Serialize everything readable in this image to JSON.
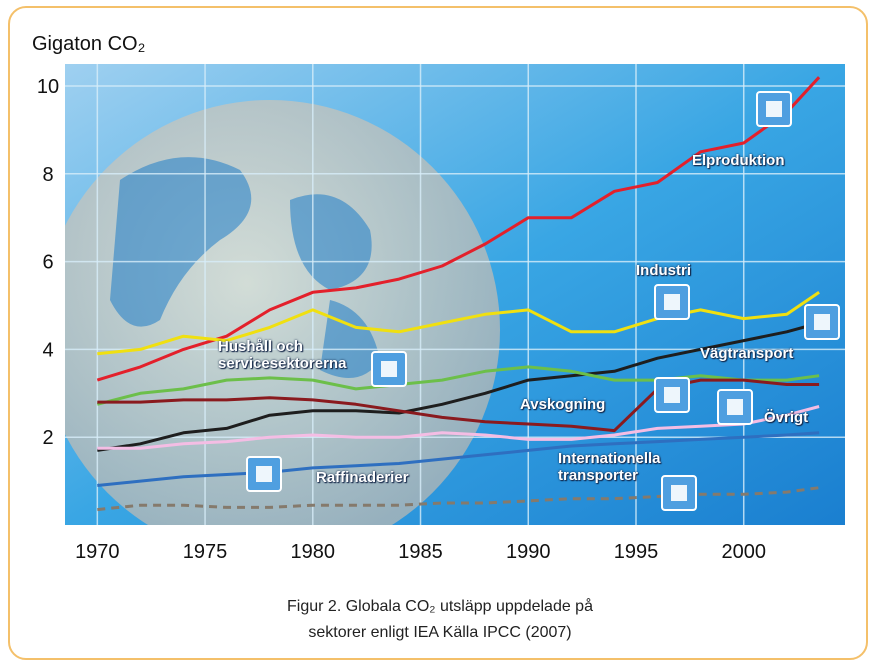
{
  "chart_data": {
    "type": "line",
    "y_label": "Gigaton CO₂",
    "caption": [
      "Figur 2. Globala CO₂ utsläpp uppdelade på",
      "sektorer enligt IEA Källa IPCC (2007)"
    ],
    "x": [
      1970,
      1972,
      1974,
      1976,
      1978,
      1980,
      1982,
      1984,
      1986,
      1988,
      1990,
      1992,
      1994,
      1996,
      1998,
      2000,
      2002,
      2003.5
    ],
    "xlim": [
      1968.5,
      2004.7
    ],
    "xticks": [
      1970,
      1975,
      1980,
      1985,
      1990,
      1995,
      2000
    ],
    "ylim": [
      0,
      10.5
    ],
    "yticks": [
      2,
      4,
      6,
      8,
      10
    ],
    "grid": true,
    "series": [
      {
        "name": "Elproduktion",
        "color": "#e3202b",
        "values": [
          3.3,
          3.6,
          4.0,
          4.3,
          4.9,
          5.3,
          5.4,
          5.6,
          5.9,
          6.4,
          7.0,
          7.0,
          7.6,
          7.8,
          8.5,
          8.7,
          9.4,
          10.2
        ]
      },
      {
        "name": "Industri",
        "color": "#f0e010",
        "values": [
          3.9,
          4.0,
          4.3,
          4.2,
          4.5,
          4.9,
          4.5,
          4.4,
          4.6,
          4.8,
          4.9,
          4.4,
          4.4,
          4.7,
          4.9,
          4.7,
          4.8,
          5.3
        ]
      },
      {
        "name": "Vägtransport",
        "color": "#1e1e1e",
        "values": [
          1.7,
          1.85,
          2.1,
          2.2,
          2.5,
          2.6,
          2.6,
          2.55,
          2.75,
          3.0,
          3.3,
          3.4,
          3.5,
          3.8,
          4.0,
          4.2,
          4.4,
          4.6
        ]
      },
      {
        "name": "Hushåll och servicesektorerna",
        "color": "#6cbf4a",
        "values": [
          2.75,
          3.0,
          3.1,
          3.3,
          3.35,
          3.3,
          3.1,
          3.2,
          3.3,
          3.5,
          3.6,
          3.5,
          3.3,
          3.3,
          3.4,
          3.3,
          3.3,
          3.4
        ]
      },
      {
        "name": "Avskogning",
        "color": "#8a1a1e",
        "values": [
          2.8,
          2.8,
          2.85,
          2.85,
          2.9,
          2.85,
          2.75,
          2.6,
          2.45,
          2.35,
          2.3,
          2.25,
          2.15,
          3.1,
          3.3,
          3.3,
          3.2,
          3.2
        ]
      },
      {
        "name": "Övrigt",
        "color": "#f4bde4",
        "values": [
          1.75,
          1.75,
          1.85,
          1.9,
          2.0,
          2.05,
          2.0,
          2.0,
          2.1,
          2.05,
          1.95,
          1.95,
          2.05,
          2.2,
          2.25,
          2.3,
          2.5,
          2.7
        ]
      },
      {
        "name": "Raffinaderier",
        "color": "#2e6fc0",
        "values": [
          0.9,
          1.0,
          1.1,
          1.15,
          1.2,
          1.3,
          1.35,
          1.4,
          1.5,
          1.6,
          1.7,
          1.8,
          1.85,
          1.9,
          1.95,
          2.0,
          2.05,
          2.1
        ]
      },
      {
        "name": "Internationella transporter",
        "color": "#857a6c",
        "dashed": true,
        "values": [
          0.35,
          0.45,
          0.45,
          0.4,
          0.4,
          0.45,
          0.45,
          0.45,
          0.5,
          0.5,
          0.55,
          0.6,
          0.6,
          0.65,
          0.7,
          0.7,
          0.75,
          0.85
        ]
      }
    ]
  }
}
